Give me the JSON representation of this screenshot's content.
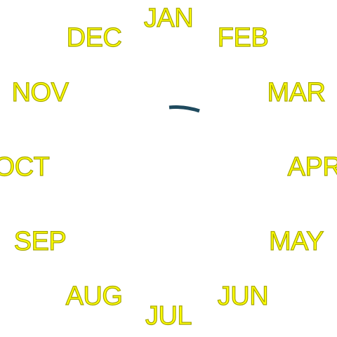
{
  "months": {
    "jan": "JAN",
    "feb": "FEB",
    "mar": "MAR",
    "apr": "APR",
    "may": "MAY",
    "jun": "JUN",
    "jul": "JUL",
    "aug": "AUG",
    "sep": "SEP",
    "oct": "OCT",
    "nov": "NOV",
    "dec": "DEC"
  },
  "colors": {
    "label_fill": "#ffff00",
    "label_outline": "#a6a600",
    "indicator": "#1f4a5e",
    "background": "#ffffff"
  }
}
